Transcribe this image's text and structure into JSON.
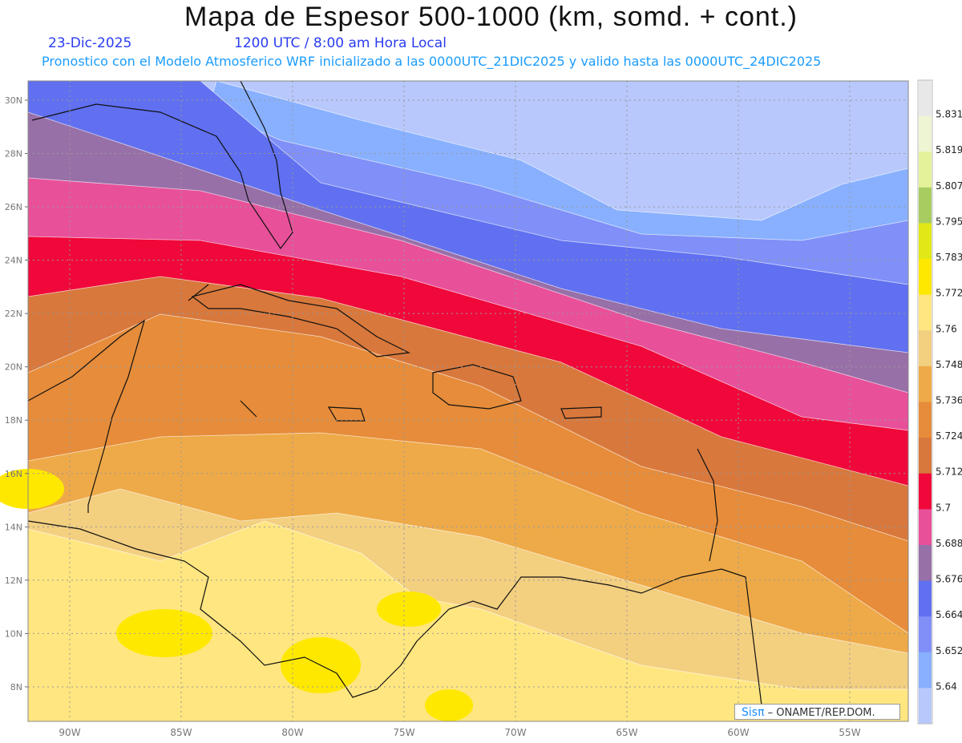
{
  "header": {
    "title": "Mapa de Espesor 500-1000 (km, somd. + cont.)",
    "date": "23-Dic-2025",
    "time": "1200 UTC / 8:00 am Hora Local",
    "subtitle": "Pronostico con el Modelo Atmosferico WRF inicializado a las 0000UTC_21DIC2025 y valido hasta las  0000UTC_24DIC2025"
  },
  "axes": {
    "lat_labels": [
      "30N",
      "28N",
      "26N",
      "24N",
      "22N",
      "20N",
      "18N",
      "16N",
      "14N",
      "12N",
      "10N",
      "8N"
    ],
    "lon_labels": [
      "90W",
      "85W",
      "80W",
      "75W",
      "70W",
      "65W",
      "60W",
      "55W"
    ]
  },
  "legend": {
    "labels": [
      "5.831",
      "5.819",
      "5.807",
      "5.795",
      "5.783",
      "5.772",
      "5.76",
      "5.748",
      "5.736",
      "5.724",
      "5.712",
      "5.7",
      "5.688",
      "5.676",
      "5.664",
      "5.652",
      "5.64"
    ],
    "colors": [
      "#e8e8e8",
      "#eef5d2",
      "#e4f29a",
      "#a8cc60",
      "#e0e818",
      "#ffe800",
      "#ffe680",
      "#f3cf80",
      "#eeaa48",
      "#e68c3a",
      "#d8783c",
      "#f0083a",
      "#e8509a",
      "#9870a8",
      "#6070f0",
      "#8090f8",
      "#88b0ff",
      "#b8c8fc"
    ]
  },
  "watermark": {
    "brand": "Sisπ",
    "text": "– ONAMET/REP.DOM."
  }
}
